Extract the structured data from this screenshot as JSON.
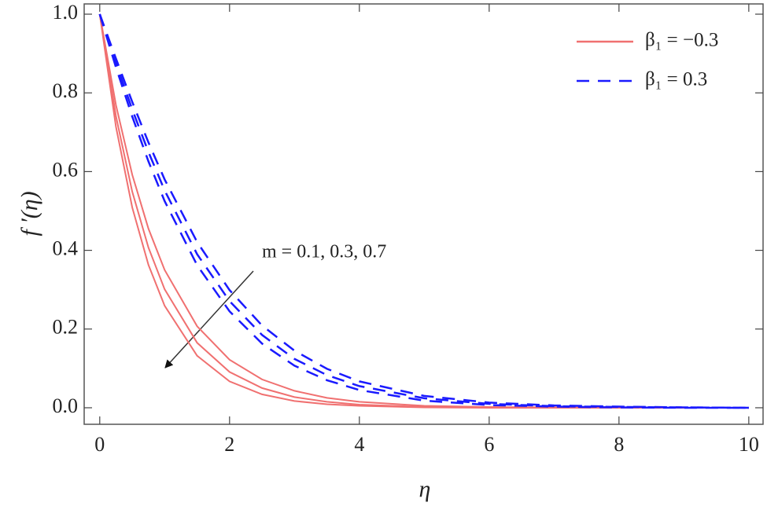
{
  "chart_data": {
    "type": "line",
    "x_label": "η",
    "y_label": "f ′(η)",
    "annotation": "m = 0.1, 0.3, 0.7",
    "legend": "upper right",
    "x": [
      0,
      0.25,
      0.5,
      0.75,
      1,
      1.5,
      2,
      2.5,
      3,
      3.5,
      4,
      5,
      6,
      7,
      8,
      9,
      10
    ],
    "series": [
      {
        "name": "β₁ = −0.3",
        "color": "#f07070",
        "dashed": false,
        "lines": [
          [
            1,
            0.769,
            0.592,
            0.455,
            0.35,
            0.207,
            0.122,
            0.072,
            0.043,
            0.025,
            0.015,
            0.005,
            0.002,
            0.001,
            0,
            0,
            0
          ],
          [
            1,
            0.741,
            0.549,
            0.407,
            0.301,
            0.165,
            0.091,
            0.05,
            0.027,
            0.015,
            0.008,
            0.002,
            0.001,
            0,
            0,
            0,
            0
          ],
          [
            1,
            0.714,
            0.509,
            0.363,
            0.259,
            0.132,
            0.067,
            0.034,
            0.017,
            0.009,
            0.005,
            0.001,
            0,
            0,
            0,
            0,
            0
          ]
        ]
      },
      {
        "name": "β₁ = 0.3",
        "color": "#1a1aff",
        "dashed": true,
        "lines": [
          [
            1,
            0.887,
            0.777,
            0.674,
            0.58,
            0.421,
            0.299,
            0.209,
            0.145,
            0.099,
            0.067,
            0.03,
            0.013,
            0.006,
            0.003,
            0.001,
            0
          ],
          [
            1,
            0.876,
            0.758,
            0.65,
            0.552,
            0.39,
            0.271,
            0.185,
            0.124,
            0.083,
            0.055,
            0.024,
            0.01,
            0.004,
            0.002,
            0.001,
            0
          ],
          [
            1,
            0.865,
            0.74,
            0.626,
            0.525,
            0.362,
            0.245,
            0.163,
            0.107,
            0.07,
            0.045,
            0.018,
            0.007,
            0.003,
            0.001,
            0,
            0
          ]
        ]
      }
    ],
    "xlim": [
      -0.24,
      10.22
    ],
    "ylim": [
      -0.042,
      1.026
    ],
    "xticks": [
      0,
      2,
      4,
      6,
      8,
      10
    ],
    "yticks": [
      {
        "value": 0,
        "label": "0.0"
      },
      0.2,
      0.4,
      0.6,
      0.8,
      {
        "value": 1,
        "label": "1.0"
      }
    ]
  }
}
